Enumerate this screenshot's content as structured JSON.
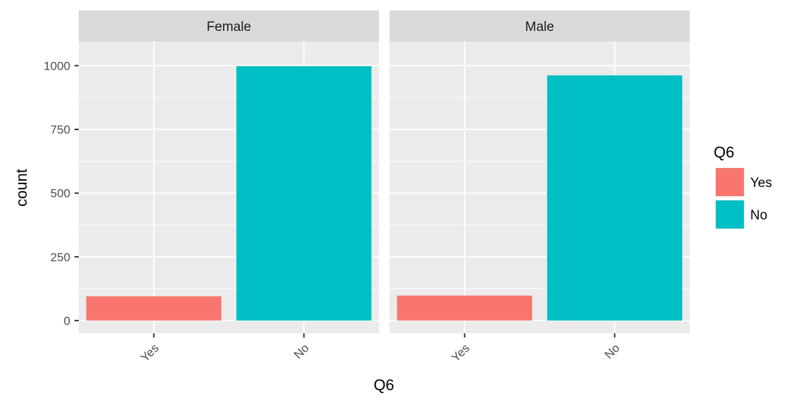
{
  "chart_data": {
    "type": "bar",
    "facets": [
      "Female",
      "Male"
    ],
    "categories": [
      "Yes",
      "No"
    ],
    "series": [
      {
        "facet": "Female",
        "values": [
          95,
          998
        ]
      },
      {
        "facet": "Male",
        "values": [
          98,
          962
        ]
      }
    ],
    "colors": {
      "Yes": "#F8766D",
      "No": "#00BFC4"
    },
    "xlabel": "Q6",
    "ylabel": "count",
    "ylim": [
      -50,
      1095
    ],
    "yticks": [
      0,
      250,
      500,
      750,
      1000
    ],
    "grid": true,
    "legend": {
      "title": "Q6",
      "position": "right",
      "items": [
        "Yes",
        "No"
      ]
    },
    "panel_background": "#EBEBEB",
    "strip_background": "#D9D9D9"
  }
}
